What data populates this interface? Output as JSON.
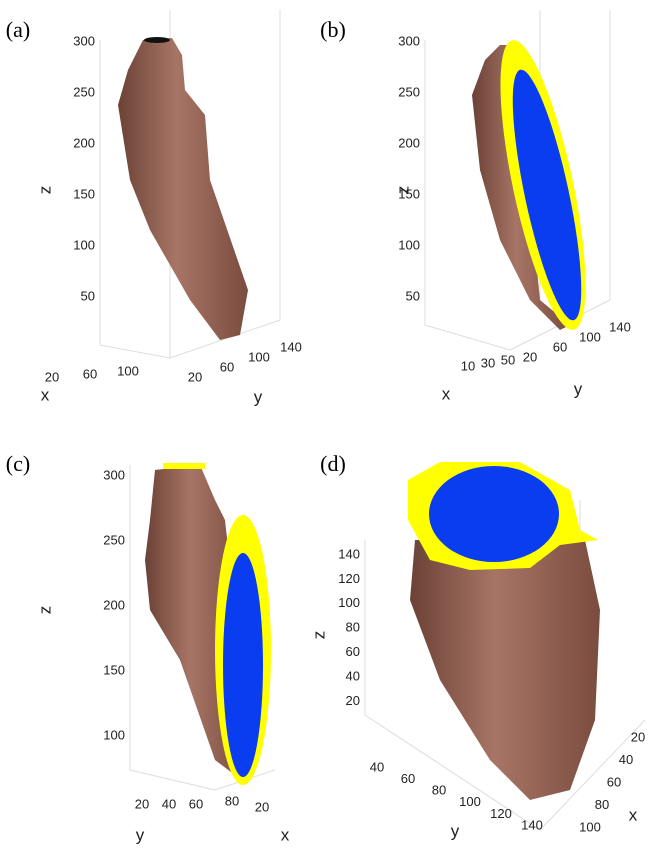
{
  "panels": [
    {
      "label": "(a)",
      "z_label": "z",
      "x_label": "x",
      "y_label": "y",
      "z_ticks": [
        300,
        250,
        200,
        150,
        100,
        50
      ],
      "x_ticks": [
        20,
        60,
        100
      ],
      "y_ticks": [
        20,
        60,
        100,
        140
      ]
    },
    {
      "label": "(b)",
      "z_label": "z",
      "x_label": "x",
      "y_label": "y",
      "z_ticks": [
        300,
        250,
        200,
        150,
        100,
        50
      ],
      "x_ticks": [
        10,
        30,
        50
      ],
      "y_ticks": [
        20,
        60,
        100,
        140
      ]
    },
    {
      "label": "(c)",
      "z_label": "z",
      "x_label": "x",
      "y_label": "y",
      "z_ticks": [
        300,
        250,
        200,
        150,
        100
      ],
      "x_ticks": [
        20
      ],
      "y_ticks": [
        20,
        40,
        60,
        80
      ]
    },
    {
      "label": "(d)",
      "z_label": "z",
      "x_label": "x",
      "y_label": "y",
      "z_ticks": [
        140,
        120,
        100,
        80,
        60,
        40,
        20
      ],
      "x_ticks": [
        20,
        40,
        60,
        80,
        100
      ],
      "y_ticks": [
        40,
        60,
        80,
        100,
        120,
        140
      ]
    }
  ]
}
